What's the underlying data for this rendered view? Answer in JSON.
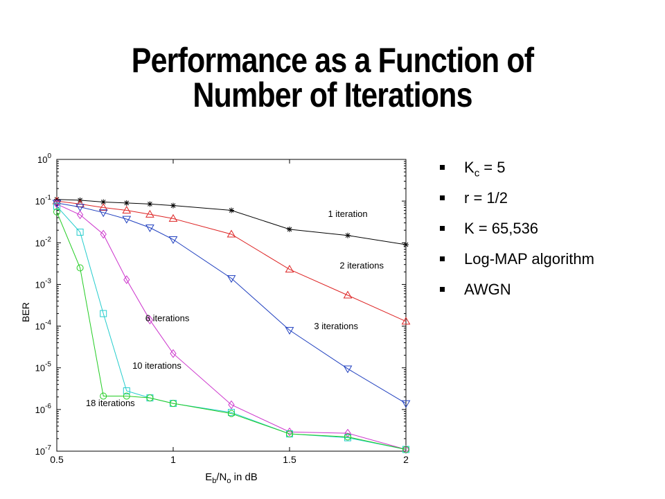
{
  "title": {
    "line1": "Performance as a Function of",
    "line2": "Number of Iterations"
  },
  "bullets": [
    {
      "main": "K",
      "sub": "c",
      "rest": " = 5"
    },
    {
      "main": "r = 1/2",
      "sub": "",
      "rest": ""
    },
    {
      "main": "K = 65,536",
      "sub": "",
      "rest": ""
    },
    {
      "main": "Log-MAP algorithm",
      "sub": "",
      "rest": ""
    },
    {
      "main": "AWGN",
      "sub": "",
      "rest": ""
    }
  ],
  "chart_data": {
    "type": "line",
    "y_scale": "log",
    "xlim": [
      0.5,
      2
    ],
    "ylim_exp": [
      -7,
      0
    ],
    "x_ticks": [
      "0.5",
      "1",
      "1.5",
      "2"
    ],
    "x_tick_values": [
      0.5,
      1,
      1.5,
      2
    ],
    "y_tick_exponents": [
      "0",
      "-1",
      "-2",
      "-3",
      "-4",
      "-5",
      "-6",
      "-7"
    ],
    "xlabel": {
      "main1": "E",
      "sub1": "b",
      "main2": "/N",
      "sub2": "o",
      "rest": " in dB"
    },
    "ylabel": "BER",
    "grid": false,
    "series": [
      {
        "name": "1 iteration",
        "color": "#000000",
        "marker": "star",
        "x": [
          0.5,
          0.6,
          0.7,
          0.8,
          0.9,
          1.0,
          1.25,
          1.5,
          1.75,
          2.0
        ],
        "y": [
          0.11,
          0.105,
          0.095,
          0.09,
          0.085,
          0.078,
          0.06,
          0.021,
          0.015,
          0.009
        ]
      },
      {
        "name": "2 iterations",
        "color": "#dd2222",
        "marker": "triangle-up",
        "x": [
          0.5,
          0.6,
          0.7,
          0.8,
          0.9,
          1.0,
          1.25,
          1.5,
          1.75,
          2.0
        ],
        "y": [
          0.1,
          0.085,
          0.07,
          0.06,
          0.048,
          0.038,
          0.016,
          0.0023,
          0.00055,
          0.00013
        ]
      },
      {
        "name": "3 iterations",
        "color": "#1f3fbf",
        "marker": "triangle-down",
        "x": [
          0.5,
          0.6,
          0.7,
          0.8,
          0.9,
          1.0,
          1.25,
          1.5,
          1.75,
          2.0
        ],
        "y": [
          0.09,
          0.072,
          0.053,
          0.037,
          0.023,
          0.012,
          0.0014,
          8e-05,
          9.5e-06,
          1.4e-06
        ]
      },
      {
        "name": "6 iterations",
        "color": "#cc33cc",
        "marker": "diamond",
        "x": [
          0.5,
          0.6,
          0.7,
          0.8,
          0.9,
          1.0,
          1.25,
          1.5,
          1.75,
          2.0
        ],
        "y": [
          0.085,
          0.047,
          0.016,
          0.0013,
          0.00014,
          2.2e-05,
          1.3e-06,
          2.9e-07,
          2.7e-07,
          1.1e-07
        ]
      },
      {
        "name": "10 iterations",
        "color": "#22cccc",
        "marker": "square",
        "x": [
          0.5,
          0.6,
          0.7,
          0.8,
          0.9,
          1.0,
          1.25,
          1.5,
          1.75,
          2.0
        ],
        "y": [
          0.075,
          0.018,
          0.0002,
          2.8e-06,
          1.9e-06,
          1.4e-06,
          8.5e-07,
          2.6e-07,
          2.1e-07,
          1.1e-07
        ]
      },
      {
        "name": "18 iterations",
        "color": "#22cc22",
        "marker": "circle",
        "x": [
          0.5,
          0.6,
          0.7,
          0.8,
          0.9,
          1.0,
          1.25,
          1.5,
          1.75,
          2.0
        ],
        "y": [
          0.055,
          0.0025,
          2.1e-06,
          2.1e-06,
          1.9e-06,
          1.4e-06,
          8e-07,
          2.6e-07,
          2.2e-07,
          1.1e-07
        ]
      }
    ],
    "annotations": [
      {
        "text": "1 iteration",
        "x": 1.75,
        "y": 0.042
      },
      {
        "text": "2 iterations",
        "x": 1.81,
        "y": 0.0024
      },
      {
        "text": "3 iterations",
        "x": 1.7,
        "y": 8.5e-05
      },
      {
        "text": "6 iterations",
        "x": 0.975,
        "y": 0.00013
      },
      {
        "text": "10 iterations",
        "x": 0.93,
        "y": 9.5e-06
      },
      {
        "text": "18 iterations",
        "x": 0.73,
        "y": 1.2e-06
      }
    ]
  }
}
